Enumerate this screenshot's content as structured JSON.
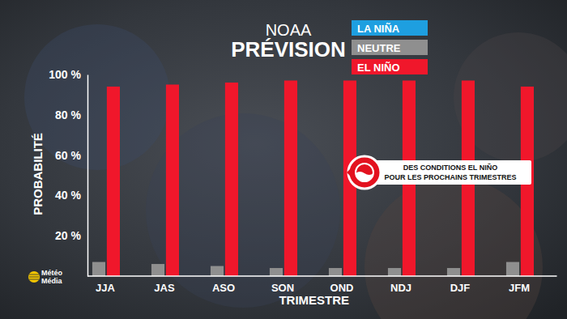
{
  "chart_data": {
    "type": "bar",
    "title": "PRÉVISION",
    "subtitle": "NOAA",
    "x_label": "TRIMESTRE",
    "y_label": "PROBABILITÉ",
    "categories": [
      "JJA",
      "JAS",
      "ASO",
      "SON",
      "OND",
      "NDJ",
      "DJF",
      "JFM"
    ],
    "series": [
      {
        "name": "LA NIÑA",
        "color": "#1e9fe0",
        "values": [
          0,
          0,
          0,
          0,
          0,
          0,
          0,
          0
        ]
      },
      {
        "name": "NEUTRE",
        "color": "#8f8f8f",
        "values": [
          7,
          6,
          5,
          4,
          4,
          4,
          4,
          7
        ]
      },
      {
        "name": "EL NIÑO",
        "color": "#f0172b",
        "values": [
          94,
          95,
          96,
          97,
          97,
          97,
          97,
          94
        ]
      }
    ],
    "ylim": [
      0,
      100
    ],
    "yticks": [
      {
        "value": 20,
        "label": "20 %"
      },
      {
        "value": 40,
        "label": "40 %"
      },
      {
        "value": 60,
        "label": "60 %"
      },
      {
        "value": 80,
        "label": "80 %"
      },
      {
        "value": 100,
        "label": "100 %"
      }
    ],
    "grid": false,
    "legend": "top-right",
    "annotation": [
      "DES CONDITIONS EL NIÑO",
      "POUR LES PROCHAINS TRIMESTRES"
    ],
    "logo": [
      "Météo",
      "Média"
    ]
  }
}
